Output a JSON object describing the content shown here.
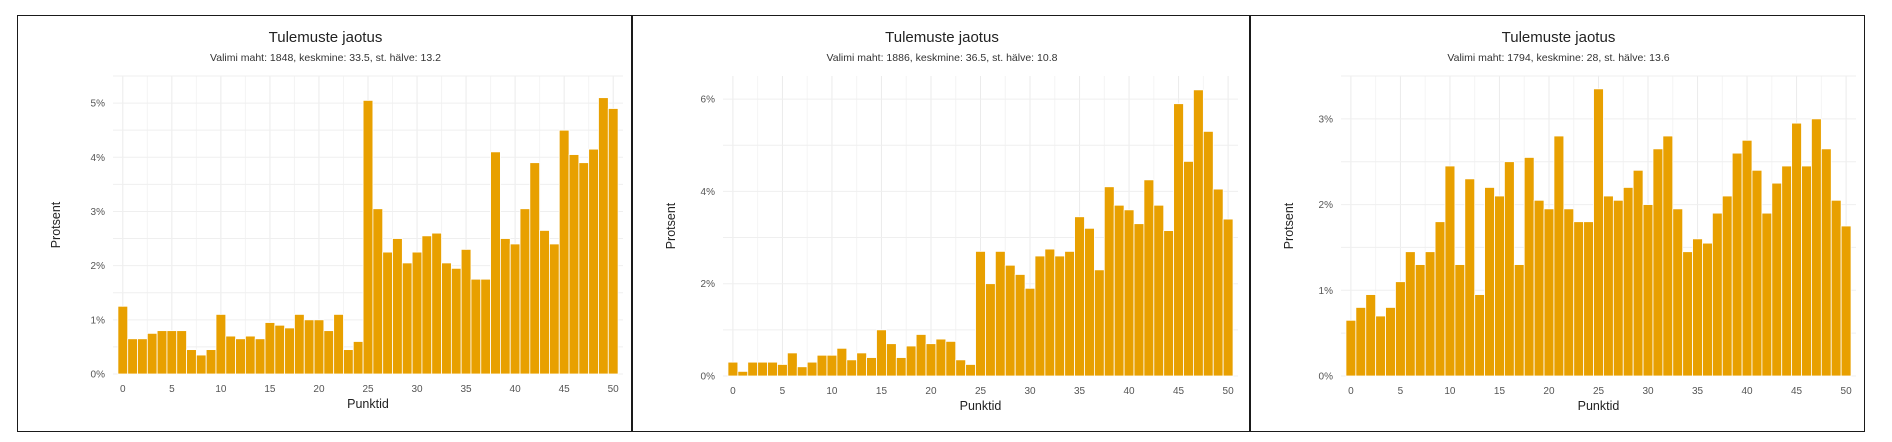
{
  "charts": [
    {
      "title": "Tulemuste jaotus",
      "subtitle": "Valimi maht: 1848, keskmine: 33.5, st. hälve: 13.2",
      "chart_data": {
        "type": "bar",
        "xlabel": "Punktid",
        "ylabel": "Protsent",
        "xlim": [
          -1,
          51
        ],
        "ylim": [
          0,
          5.5
        ],
        "x_ticks": [
          0,
          5,
          10,
          15,
          20,
          25,
          30,
          35,
          40,
          45,
          50
        ],
        "y_ticks": [
          0,
          1,
          2,
          3,
          4,
          5
        ],
        "y_tick_labels": [
          "0%",
          "1%",
          "2%",
          "3%",
          "4%",
          "5%"
        ],
        "grid": true,
        "color": "#E8A000",
        "x": [
          0,
          1,
          2,
          3,
          4,
          5,
          6,
          7,
          8,
          9,
          10,
          11,
          12,
          13,
          14,
          15,
          16,
          17,
          18,
          19,
          20,
          21,
          22,
          23,
          24,
          25,
          26,
          27,
          28,
          29,
          30,
          31,
          32,
          33,
          34,
          35,
          36,
          37,
          38,
          39,
          40,
          41,
          42,
          43,
          44,
          45,
          46,
          47,
          48,
          49,
          50
        ],
        "values": [
          1.25,
          0.65,
          0.65,
          0.75,
          0.8,
          0.8,
          0.8,
          0.45,
          0.35,
          0.45,
          1.1,
          0.7,
          0.65,
          0.7,
          0.65,
          0.95,
          0.9,
          0.85,
          1.1,
          1.0,
          1.0,
          0.8,
          1.1,
          0.45,
          0.6,
          5.05,
          3.05,
          2.25,
          2.5,
          2.05,
          2.25,
          2.55,
          2.6,
          2.05,
          1.95,
          2.3,
          1.75,
          1.75,
          4.1,
          2.5,
          2.4,
          3.05,
          3.9,
          2.65,
          2.4,
          4.5,
          4.05,
          3.9,
          4.15,
          5.1,
          4.9
        ]
      }
    },
    {
      "title": "Tulemuste jaotus",
      "subtitle": "Valimi maht: 1886, keskmine: 36.5, st. hälve: 10.8",
      "chart_data": {
        "type": "bar",
        "xlabel": "Punktid",
        "ylabel": "Protsent",
        "xlim": [
          -1,
          51
        ],
        "ylim": [
          0,
          6.5
        ],
        "x_ticks": [
          0,
          5,
          10,
          15,
          20,
          25,
          30,
          35,
          40,
          45,
          50
        ],
        "y_ticks": [
          0,
          2,
          4,
          6
        ],
        "y_tick_labels": [
          "0%",
          "2%",
          "4%",
          "6%"
        ],
        "grid": true,
        "color": "#E8A000",
        "x": [
          0,
          1,
          2,
          3,
          4,
          5,
          6,
          7,
          8,
          9,
          10,
          11,
          12,
          13,
          14,
          15,
          16,
          17,
          18,
          19,
          20,
          21,
          22,
          23,
          24,
          25,
          26,
          27,
          28,
          29,
          30,
          31,
          32,
          33,
          34,
          35,
          36,
          37,
          38,
          39,
          40,
          41,
          42,
          43,
          44,
          45,
          46,
          47,
          48,
          49,
          50
        ],
        "values": [
          0.3,
          0.1,
          0.3,
          0.3,
          0.3,
          0.25,
          0.5,
          0.2,
          0.3,
          0.45,
          0.45,
          0.6,
          0.35,
          0.5,
          0.4,
          1.0,
          0.7,
          0.4,
          0.65,
          0.9,
          0.7,
          0.8,
          0.75,
          0.35,
          0.25,
          2.7,
          2.0,
          2.7,
          2.4,
          2.2,
          1.9,
          2.6,
          2.75,
          2.6,
          2.7,
          3.45,
          3.2,
          2.3,
          4.1,
          3.7,
          3.6,
          3.3,
          4.25,
          3.7,
          3.15,
          5.9,
          4.65,
          6.2,
          5.3,
          4.05,
          3.4
        ]
      }
    },
    {
      "title": "Tulemuste jaotus",
      "subtitle": "Valimi maht: 1794, keskmine: 28, st. hälve: 13.6",
      "chart_data": {
        "type": "bar",
        "xlabel": "Punktid",
        "ylabel": "Protsent",
        "xlim": [
          -1,
          51
        ],
        "ylim": [
          0,
          3.5
        ],
        "x_ticks": [
          0,
          5,
          10,
          15,
          20,
          25,
          30,
          35,
          40,
          45,
          50
        ],
        "y_ticks": [
          0,
          1,
          2,
          3
        ],
        "y_tick_labels": [
          "0%",
          "1%",
          "2%",
          "3%"
        ],
        "grid": true,
        "color": "#E8A000",
        "x": [
          0,
          1,
          2,
          3,
          4,
          5,
          6,
          7,
          8,
          9,
          10,
          11,
          12,
          13,
          14,
          15,
          16,
          17,
          18,
          19,
          20,
          21,
          22,
          23,
          24,
          25,
          26,
          27,
          28,
          29,
          30,
          31,
          32,
          33,
          34,
          35,
          36,
          37,
          38,
          39,
          40,
          41,
          42,
          43,
          44,
          45,
          46,
          47,
          48,
          49,
          50
        ],
        "values": [
          0.65,
          0.8,
          0.95,
          0.7,
          0.8,
          1.1,
          1.45,
          1.3,
          1.45,
          1.8,
          2.45,
          1.3,
          2.3,
          0.95,
          2.2,
          2.1,
          2.5,
          1.3,
          2.55,
          2.05,
          1.95,
          2.8,
          1.95,
          1.8,
          1.8,
          3.35,
          2.1,
          2.05,
          2.2,
          2.4,
          2.0,
          2.65,
          2.8,
          1.95,
          1.45,
          1.6,
          1.55,
          1.9,
          2.1,
          2.6,
          2.75,
          2.4,
          1.9,
          2.25,
          2.45,
          2.95,
          2.45,
          3.0,
          2.65,
          2.05,
          1.75
        ]
      }
    }
  ]
}
